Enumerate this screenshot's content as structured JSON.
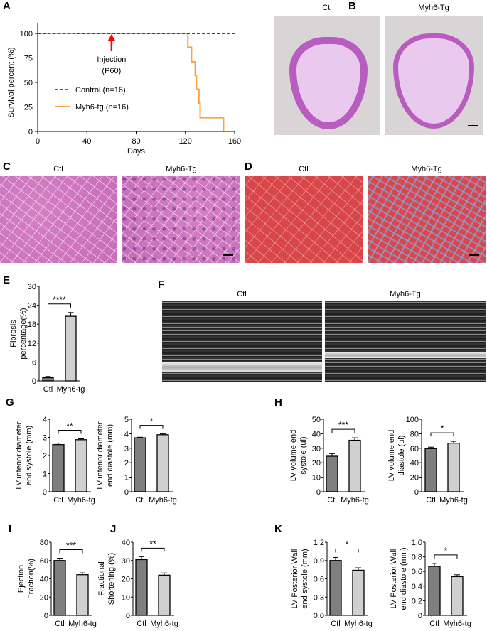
{
  "panels": {
    "A": "A",
    "B": "B",
    "C": "C",
    "D": "D",
    "E": "E",
    "F": "F",
    "G": "G",
    "H": "H",
    "I": "I",
    "J": "J",
    "K": "K"
  },
  "images": {
    "B": {
      "ctl": "Ctl",
      "tg": "Myh6-Tg"
    },
    "C": {
      "ctl": "Ctl",
      "tg": "Myh6-Tg"
    },
    "D": {
      "ctl": "Ctl",
      "tg": "Myh6-Tg"
    },
    "F": {
      "ctl": "Ctl",
      "tg": "Myh6-Tg"
    }
  },
  "colors": {
    "control": "#000000",
    "tg": "#f5a442",
    "arrow": "#ff0000",
    "bar_ctl": "#7f7f7f",
    "bar_tg": "#d0d0d0"
  },
  "chart_data": [
    {
      "id": "A",
      "type": "line",
      "xlabel": "Days",
      "ylabel": "Survival percent (%)",
      "xlim": [
        0,
        160
      ],
      "ylim": [
        0,
        100
      ],
      "xticks": [
        0,
        40,
        80,
        120,
        160
      ],
      "yticks": [
        0,
        25,
        50,
        75,
        100
      ],
      "annotation": {
        "lines": [
          "Injection",
          "(P60)"
        ],
        "x": 60,
        "y": 100
      },
      "legend_position": "center-left",
      "series": [
        {
          "name": "Control (n=16)",
          "style": "dashed",
          "x": [
            0,
            160
          ],
          "y": [
            100,
            100
          ]
        },
        {
          "name": "Myh6-tg (n=16)",
          "style": "solid-step",
          "x": [
            0,
            122,
            122,
            125,
            125,
            128,
            128,
            129,
            129,
            131,
            131,
            132,
            132,
            151,
            151
          ],
          "y": [
            100,
            100,
            86,
            86,
            71,
            71,
            57,
            57,
            43,
            43,
            29,
            29,
            14,
            14,
            0
          ]
        }
      ]
    },
    {
      "id": "E",
      "type": "bar",
      "ylabel": [
        "Fibrosis",
        "percentage(%)"
      ],
      "categories": [
        "Ctl",
        "Myh6-tg"
      ],
      "values": [
        1.0,
        20.5
      ],
      "errors": [
        0.4,
        1.2
      ],
      "ylim": [
        0,
        30
      ],
      "yticks": [
        "0",
        "6",
        "12",
        "18",
        "24",
        "30"
      ],
      "significance": "****"
    },
    {
      "id": "G1",
      "type": "bar",
      "ylabel": [
        "LV interior diameter",
        "end systole (mm)"
      ],
      "categories": [
        "Ctl",
        "Myh6-tg"
      ],
      "values": [
        2.6,
        2.87
      ],
      "errors": [
        0.08,
        0.05
      ],
      "ylim": [
        0,
        4
      ],
      "yticks": [
        "0",
        "1",
        "2",
        "3",
        "4"
      ],
      "significance": "**"
    },
    {
      "id": "G2",
      "type": "bar",
      "ylabel": [
        "LV interior diameter",
        "end diastole (mm)"
      ],
      "categories": [
        "Ctl",
        "Myh6-tg"
      ],
      "values": [
        3.72,
        3.93
      ],
      "errors": [
        0.04,
        0.06
      ],
      "ylim": [
        0,
        5
      ],
      "yticks": [
        "0",
        "1",
        "2",
        "3",
        "4",
        "5"
      ],
      "significance": "*"
    },
    {
      "id": "H1",
      "type": "bar",
      "ylabel": [
        "LV volume end",
        "systole (ul)"
      ],
      "categories": [
        "Ctl",
        "Myh6-tg"
      ],
      "values": [
        24.5,
        35.5
      ],
      "errors": [
        1.8,
        1.7
      ],
      "ylim": [
        0,
        50
      ],
      "yticks": [
        "0",
        "10",
        "20",
        "30",
        "40",
        "50"
      ],
      "significance": "***"
    },
    {
      "id": "H2",
      "type": "bar",
      "ylabel": [
        "LV volume end",
        "diastole (ul)"
      ],
      "categories": [
        "Ctl",
        "Myh6-tg"
      ],
      "values": [
        59.5,
        67
      ],
      "errors": [
        2,
        2.5
      ],
      "ylim": [
        0,
        100
      ],
      "yticks": [
        "0",
        "20",
        "40",
        "60",
        "80",
        "100"
      ],
      "significance": "*"
    },
    {
      "id": "I",
      "type": "bar",
      "ylabel": [
        "Ejection",
        "Fraction(%)"
      ],
      "categories": [
        "Ctl",
        "Myh6-tg"
      ],
      "values": [
        60,
        44.5
      ],
      "errors": [
        2.5,
        2
      ],
      "ylim": [
        0,
        80
      ],
      "yticks": [
        "0",
        "20",
        "40",
        "60",
        "80"
      ],
      "significance": "***"
    },
    {
      "id": "J",
      "type": "bar",
      "ylabel": [
        "Fractional",
        "Shortening (%)"
      ],
      "categories": [
        "Ctl",
        "Myh6-tg"
      ],
      "values": [
        30.5,
        22
      ],
      "errors": [
        1.6,
        1.2
      ],
      "ylim": [
        0,
        40
      ],
      "yticks": [
        "0",
        "10",
        "20",
        "30",
        "40"
      ],
      "significance": "**"
    },
    {
      "id": "K1",
      "type": "bar",
      "ylabel": [
        "LV Posterior Wall",
        "end systole (mm)"
      ],
      "categories": [
        "Ctl",
        "Myh6-tg"
      ],
      "values": [
        0.9,
        0.74
      ],
      "errors": [
        0.05,
        0.04
      ],
      "ylim": [
        0,
        1.2
      ],
      "yticks": [
        "0.0",
        "0.3",
        "0.6",
        "0.9",
        "1.2"
      ],
      "significance": "*"
    },
    {
      "id": "K2",
      "type": "bar",
      "ylabel": [
        "LV Posterior Wall",
        "end diastole (mm)"
      ],
      "categories": [
        "Ctl",
        "Myh6-tg"
      ],
      "values": [
        0.67,
        0.53
      ],
      "errors": [
        0.04,
        0.025
      ],
      "ylim": [
        0,
        1.0
      ],
      "yticks": [
        "0",
        "0.2",
        "0.4",
        "0.6",
        "0.8",
        "1.0"
      ],
      "significance": "*"
    }
  ]
}
